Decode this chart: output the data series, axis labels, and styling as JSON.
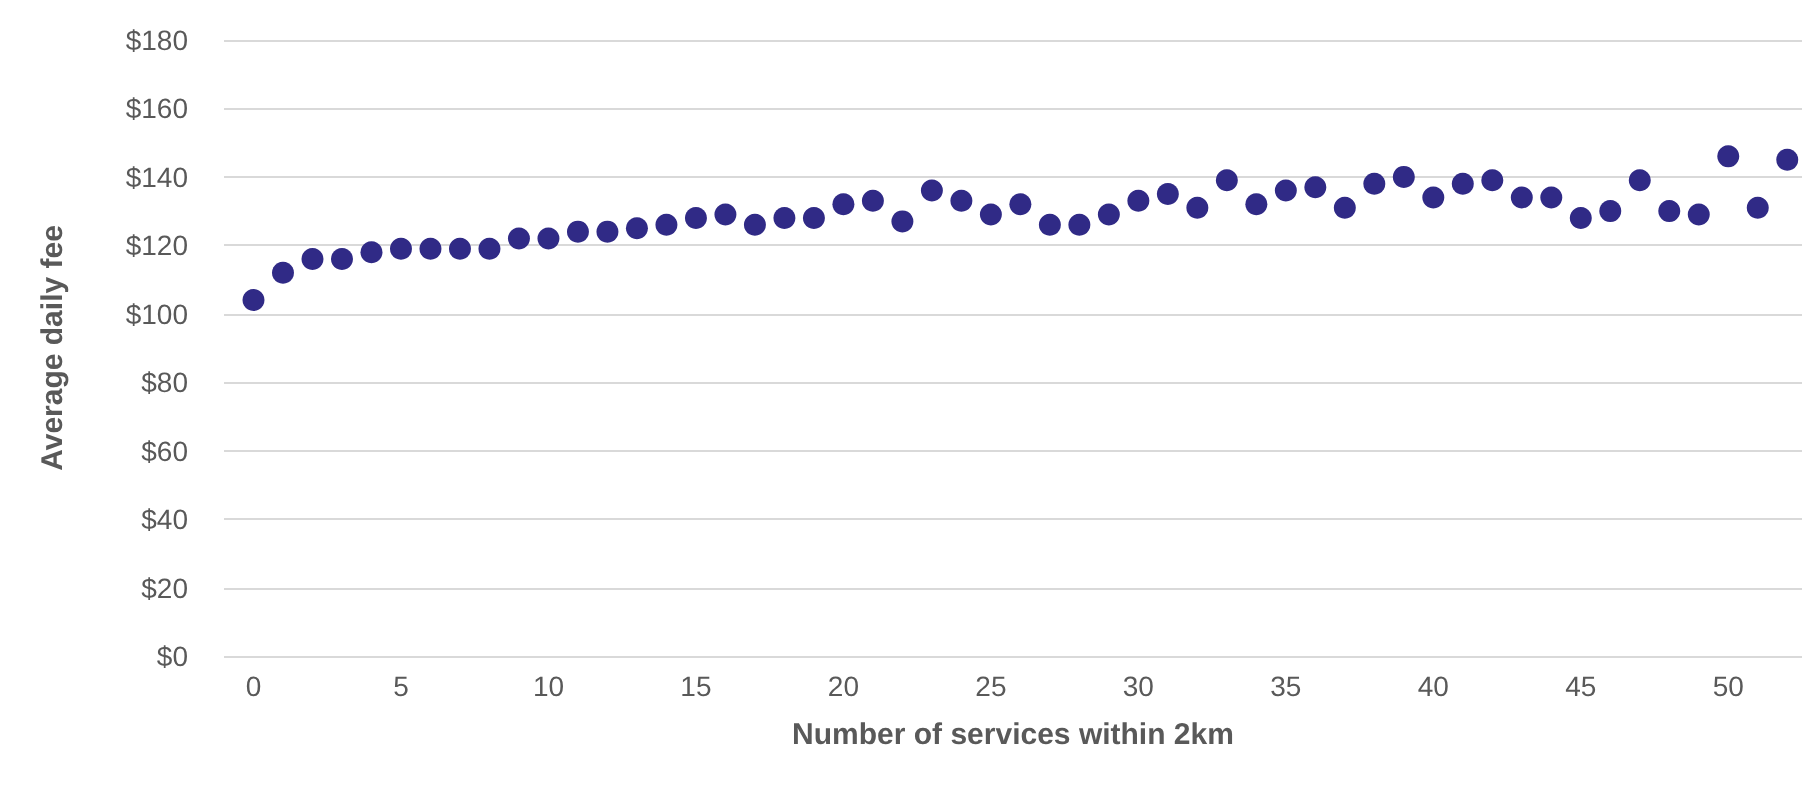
{
  "chart_data": {
    "type": "scatter",
    "xlabel": "Number of services within 2km",
    "ylabel": "Average daily fee",
    "x": [
      0,
      1,
      2,
      3,
      4,
      5,
      6,
      7,
      8,
      9,
      10,
      11,
      12,
      13,
      14,
      15,
      16,
      17,
      18,
      19,
      20,
      21,
      22,
      23,
      24,
      25,
      26,
      27,
      28,
      29,
      30,
      31,
      32,
      33,
      34,
      35,
      36,
      37,
      38,
      39,
      40,
      41,
      42,
      43,
      44,
      45,
      46,
      47,
      48,
      49,
      50,
      51,
      52
    ],
    "series": [
      {
        "color": "#302a86",
        "values": [
          104,
          112,
          116,
          116,
          118,
          119,
          119,
          119,
          119,
          122,
          122,
          124,
          124,
          125,
          126,
          128,
          129,
          126,
          128,
          128,
          132,
          133,
          127,
          136,
          133,
          129,
          132,
          126,
          126,
          129,
          133,
          135,
          131,
          139,
          132,
          136,
          137,
          131,
          138,
          140,
          134,
          138,
          139,
          134,
          134,
          128,
          130,
          139,
          130,
          129,
          146,
          131,
          145
        ]
      }
    ],
    "xlim": [
      -1,
      52.5
    ],
    "xticks": [
      0,
      5,
      10,
      15,
      20,
      25,
      30,
      35,
      40,
      45,
      50
    ],
    "ylim": [
      0,
      180
    ],
    "yticks": [
      {
        "value": 0,
        "label": "$0"
      },
      {
        "value": 20,
        "label": "$20"
      },
      {
        "value": 40,
        "label": "$40"
      },
      {
        "value": 60,
        "label": "$60"
      },
      {
        "value": 80,
        "label": "$80"
      },
      {
        "value": 100,
        "label": "$100"
      },
      {
        "value": 120,
        "label": "$120"
      },
      {
        "value": 140,
        "label": "$140"
      },
      {
        "value": 160,
        "label": "$160"
      },
      {
        "value": 180,
        "label": "$180"
      }
    ],
    "grid": "y",
    "marker": "circle"
  }
}
